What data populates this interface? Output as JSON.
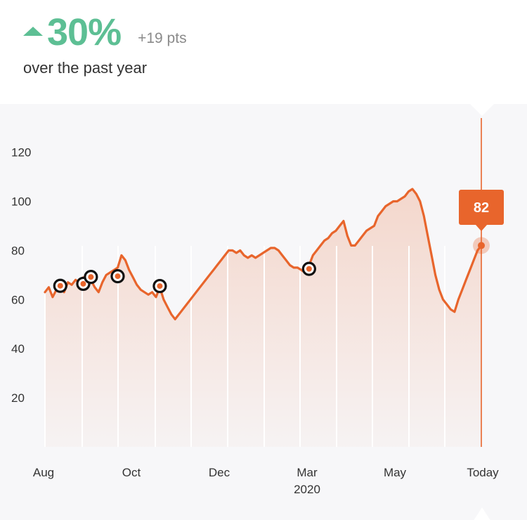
{
  "header": {
    "change_percent": "30%",
    "change_points": "+19 pts",
    "period_text": "over the past year",
    "trend_icon": "triangle-up-icon",
    "positive_color": "#5dbf94"
  },
  "chart_data": {
    "type": "area",
    "line_color": "#e8652c",
    "ylim": [
      0,
      130
    ],
    "y_ticks": [
      20,
      40,
      60,
      80,
      100,
      120
    ],
    "x_tick_labels": [
      {
        "label": "Aug",
        "sub": ""
      },
      {
        "label": "Oct",
        "sub": ""
      },
      {
        "label": "Dec",
        "sub": ""
      },
      {
        "label": "Mar",
        "sub": "2020"
      },
      {
        "label": "May",
        "sub": ""
      },
      {
        "label": "Today",
        "sub": ""
      }
    ],
    "series": [
      {
        "values": [
          63,
          65,
          61,
          64,
          66,
          63,
          67,
          66,
          68,
          67,
          69,
          66,
          68,
          65,
          63,
          67,
          70,
          71,
          72,
          73,
          78,
          76,
          72,
          69,
          66,
          64,
          63,
          62,
          63,
          61,
          65,
          60,
          57,
          54,
          52,
          54,
          56,
          58,
          60,
          62,
          64,
          66,
          68,
          70,
          72,
          74,
          76,
          78,
          80,
          80,
          79,
          80,
          78,
          77,
          78,
          77,
          78,
          79,
          80,
          81,
          81,
          80,
          78,
          76,
          74,
          73,
          73,
          72,
          71,
          74,
          78,
          80,
          82,
          84,
          85,
          87,
          88,
          90,
          92,
          86,
          82,
          82,
          84,
          86,
          88,
          89,
          90,
          94,
          96,
          98,
          99,
          100,
          100,
          101,
          102,
          104,
          105,
          103,
          100,
          94,
          86,
          78,
          70,
          64,
          60,
          58,
          56,
          55,
          60,
          64,
          68,
          72,
          76,
          80,
          82
        ]
      }
    ],
    "event_markers": [
      {
        "index": 4,
        "value": 65.6
      },
      {
        "index": 10,
        "value": 66.4
      },
      {
        "index": 12,
        "value": 69.2
      },
      {
        "index": 19,
        "value": 69.5
      },
      {
        "index": 30,
        "value": 65.5
      },
      {
        "index": 69,
        "value": 72.5
      }
    ],
    "current": {
      "label": "82",
      "value": 82
    }
  }
}
